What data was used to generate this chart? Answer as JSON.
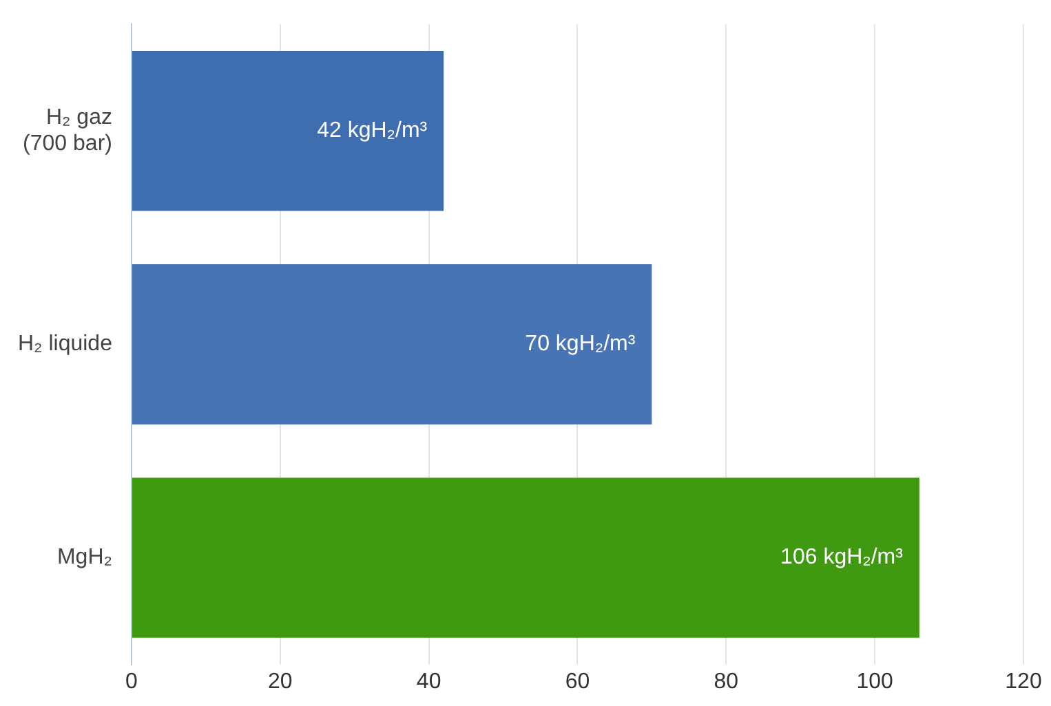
{
  "chart_data": {
    "type": "bar",
    "orientation": "horizontal",
    "categories": [
      "H₂ gaz (700 bar)",
      "H₂ liquide",
      "MgH₂"
    ],
    "values": [
      42,
      70,
      106
    ],
    "colors": [
      "#3f6eb0",
      "#4674b5",
      "#3f9a12"
    ],
    "value_labels": [
      "42 kgH₂/m³",
      "70 kgH₂/m³",
      "106 kgH₂/m³"
    ],
    "xlim": [
      0,
      120
    ],
    "xticks": [
      0,
      20,
      40,
      60,
      80,
      100,
      120
    ],
    "grid": "x",
    "legend": false
  }
}
